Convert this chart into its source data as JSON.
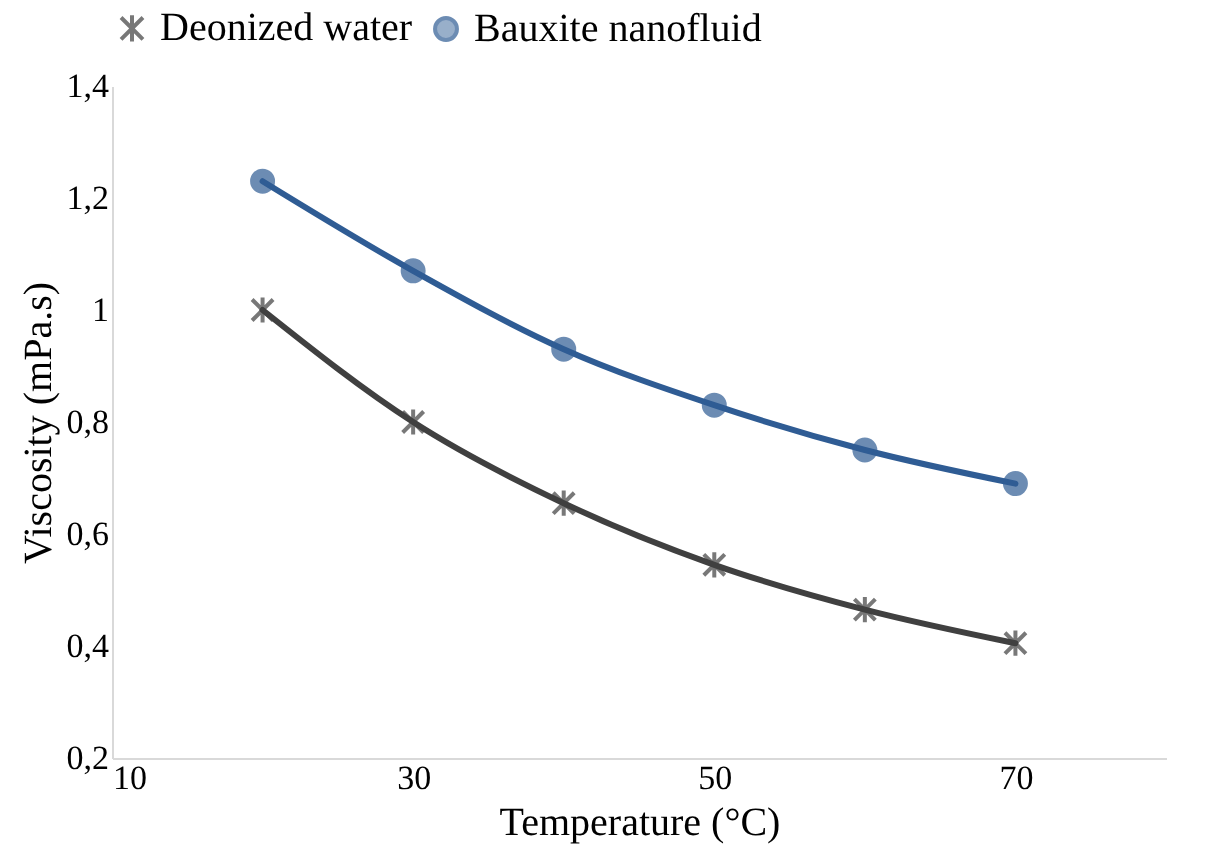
{
  "chart_data": {
    "type": "line",
    "xlabel": "Temperature (°C)",
    "ylabel": "Viscosity (mPa.s)",
    "x": [
      20,
      30,
      40,
      50,
      60,
      70
    ],
    "series": [
      {
        "name": "Deonized water",
        "color": "#404040",
        "marker": "cross",
        "values": [
          1.0,
          0.8,
          0.655,
          0.545,
          0.465,
          0.405
        ]
      },
      {
        "name": "Bauxite nanofluid",
        "color": "#2f5c94",
        "marker": "circle",
        "values": [
          1.23,
          1.07,
          0.93,
          0.83,
          0.75,
          0.69
        ]
      }
    ],
    "xlim": [
      10,
      80
    ],
    "xticks": [
      10,
      30,
      50,
      70
    ],
    "ylim": [
      0.2,
      1.4
    ],
    "yticks": [
      {
        "value": 0.2,
        "label": "0,2"
      },
      {
        "value": 0.4,
        "label": "0,4"
      },
      {
        "value": 0.6,
        "label": "0,6"
      },
      {
        "value": 0.8,
        "label": "0,8"
      },
      {
        "value": 1,
        "label": "1"
      },
      {
        "value": 1.2,
        "label": "1,2"
      },
      {
        "value": 1.4,
        "label": "1,4"
      }
    ],
    "grid": false,
    "legend": "top"
  }
}
